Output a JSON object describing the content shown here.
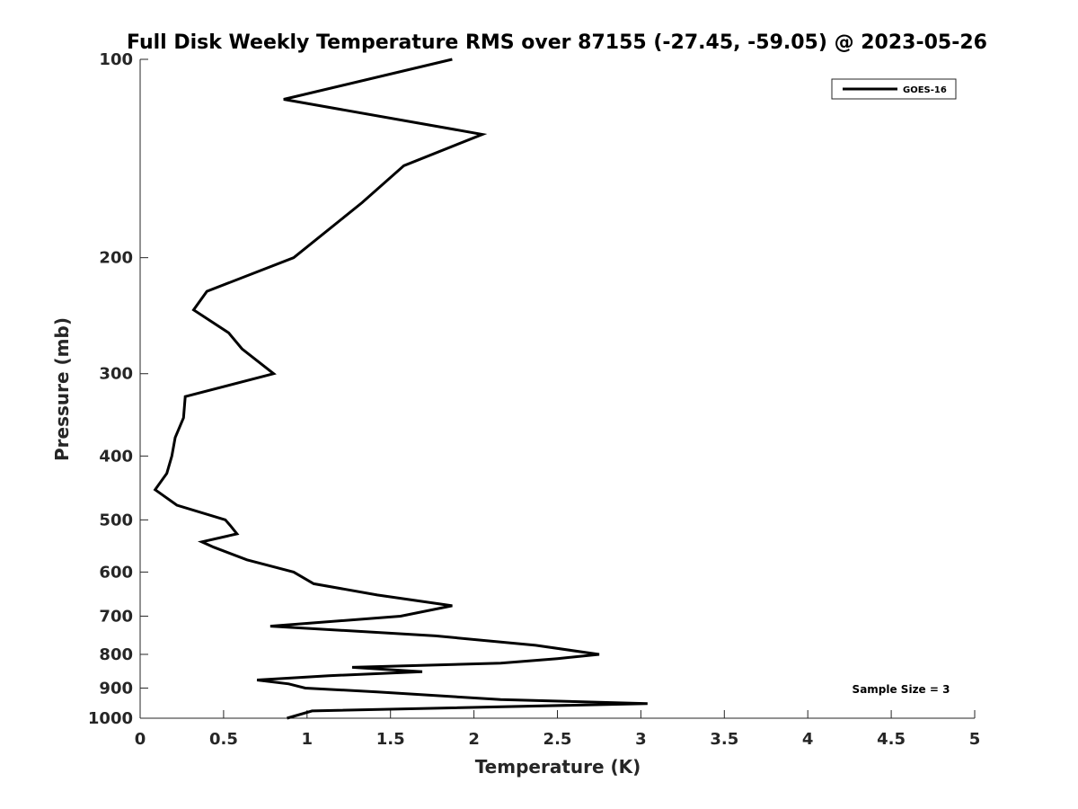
{
  "chart_data": {
    "type": "line",
    "title": "Full Disk Weekly Temperature RMS over 87155 (-27.45, -59.05) @ 2023-05-26",
    "xlabel": "Temperature (K)",
    "ylabel": "Pressure (mb)",
    "xlim": [
      0,
      5
    ],
    "ylim": [
      100,
      1000
    ],
    "y_scale": "log",
    "y_reversed": true,
    "x_ticks": [
      0,
      0.5,
      1,
      1.5,
      2,
      2.5,
      3,
      3.5,
      4,
      4.5,
      5
    ],
    "x_tick_labels": [
      "0",
      "0.5",
      "1",
      "1.5",
      "2",
      "2.5",
      "3",
      "3.5",
      "4",
      "4.5",
      "5"
    ],
    "y_ticks": [
      100,
      200,
      300,
      400,
      500,
      600,
      700,
      800,
      900,
      1000
    ],
    "y_tick_labels": [
      "100",
      "200",
      "300",
      "400",
      "500",
      "600",
      "700",
      "800",
      "900",
      "1000"
    ],
    "grid": false,
    "legend_position": "top-right",
    "series": [
      {
        "name": "GOES-16",
        "color": "#000000",
        "x": [
          1.87,
          0.86,
          2.05,
          1.58,
          1.33,
          0.92,
          0.4,
          0.32,
          0.53,
          0.61,
          0.8,
          0.27,
          0.26,
          0.21,
          0.19,
          0.16,
          0.09,
          0.22,
          0.51,
          0.54,
          0.58,
          0.37,
          0.44,
          0.64,
          0.92,
          1.04,
          1.42,
          1.87,
          1.56,
          0.78,
          1.77,
          2.37,
          2.75,
          2.5,
          2.16,
          1.27,
          1.69,
          1.13,
          0.7,
          0.89,
          0.99,
          1.42,
          2.16,
          3.04,
          1.03,
          0.88
        ],
        "y": [
          100,
          115,
          130,
          145,
          165,
          200,
          225,
          240,
          260,
          275,
          300,
          325,
          350,
          375,
          400,
          425,
          450,
          475,
          500,
          510,
          525,
          540,
          550,
          575,
          600,
          625,
          650,
          675,
          700,
          725,
          750,
          775,
          800,
          812,
          825,
          837,
          850,
          862,
          875,
          887,
          900,
          912,
          937,
          950,
          975,
          1000
        ]
      }
    ],
    "annotations": [
      {
        "text": "Sample Size = 3",
        "position": "bottom-right"
      }
    ]
  }
}
